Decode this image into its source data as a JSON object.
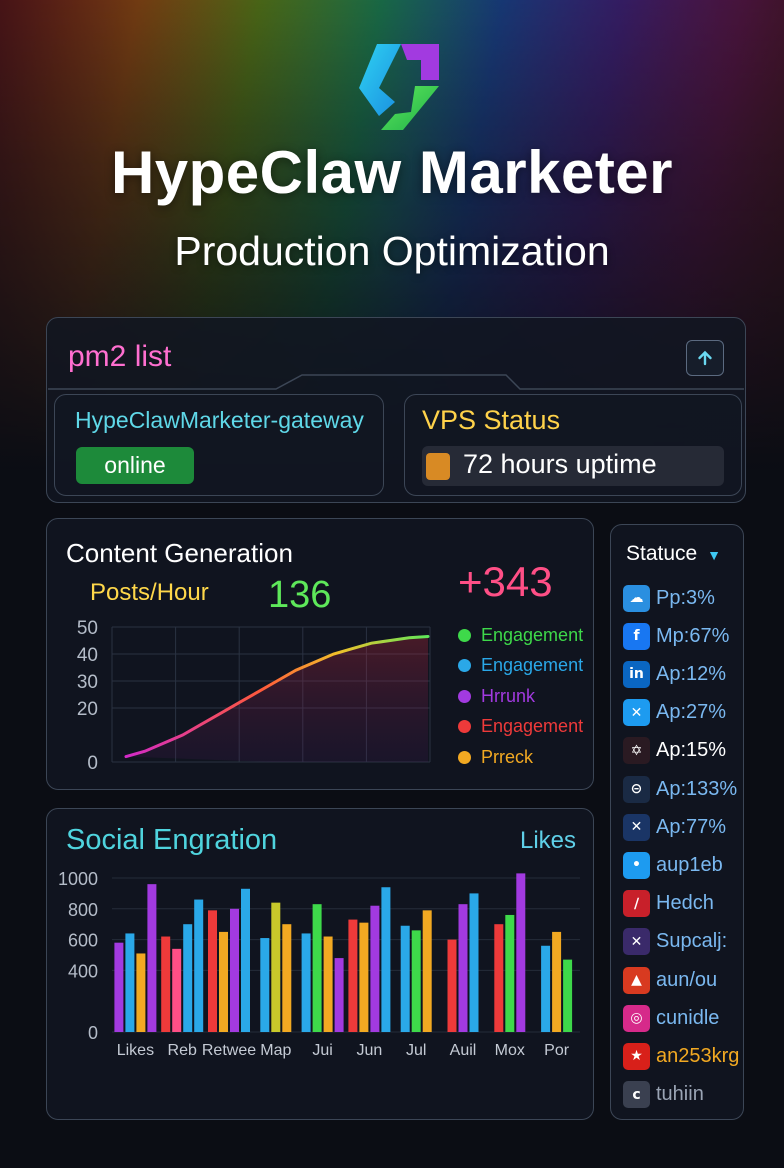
{
  "header": {
    "title": "HypeClaw Marketer",
    "subtitle": "Production Optimization"
  },
  "pm2": {
    "title": "pm2 list",
    "process_name": "HypeClawMarketer-gateway",
    "status": "online"
  },
  "vps": {
    "title": "VPS Status",
    "uptime": "72 hours uptime"
  },
  "content_generation": {
    "title": "Content Generation",
    "metric_label": "Posts/Hour",
    "metric_value": "136",
    "delta": "+343",
    "legend": [
      {
        "label": "Engagement",
        "color": "#3ed94a"
      },
      {
        "label": "Engagement",
        "color": "#2aa8e8"
      },
      {
        "label": "Hrrunk",
        "color": "#a23ae0"
      },
      {
        "label": "Engagement",
        "color": "#ee3a3a"
      },
      {
        "label": "Prreck",
        "color": "#f2a922"
      }
    ]
  },
  "social_engagement": {
    "title": "Social Engration",
    "series_label": "Likes"
  },
  "status_panel": {
    "title": "Statuce",
    "items": [
      {
        "icon": "cloud-icon",
        "label": "Pp:3%",
        "color": "#2a8fe0",
        "text_color": "#7ab8f0"
      },
      {
        "icon": "facebook-icon",
        "label": "Mp:67%",
        "color": "#1877f2",
        "text_color": "#7ab8f0"
      },
      {
        "icon": "linkedin-icon",
        "label": "Ap:12%",
        "color": "#0a66c2",
        "text_color": "#7ab8f0"
      },
      {
        "icon": "x-icon",
        "label": "Ap:27%",
        "color": "#1d9bf0",
        "text_color": "#7ab8f0"
      },
      {
        "icon": "scribble-icon",
        "label": "Ap:15%",
        "color": "#2a1a22",
        "text_color": "#ffffff"
      },
      {
        "icon": "minus-circle-icon",
        "label": "Ap:133%",
        "color": "#1a2a44",
        "text_color": "#7ab8f0"
      },
      {
        "icon": "x-icon",
        "label": "Ap:77%",
        "color": "#1a3566",
        "text_color": "#7ab8f0"
      },
      {
        "icon": "twitter-icon",
        "label": "aup1eb",
        "color": "#1d9bf0",
        "text_color": "#7ab8f0"
      },
      {
        "icon": "stripes-icon",
        "label": "Hedch",
        "color": "#c8202a",
        "text_color": "#7ab8f0"
      },
      {
        "icon": "x-icon",
        "label": "Supcalj:",
        "color": "#3a2a6a",
        "text_color": "#7ab8f0"
      },
      {
        "icon": "triangle-icon",
        "label": "aun/ou",
        "color": "#d83a20",
        "text_color": "#7ab8f0"
      },
      {
        "icon": "instagram-icon",
        "label": "cunidle",
        "color": "#d62a8a",
        "text_color": "#7ab8f0"
      },
      {
        "icon": "badge-icon",
        "label": "an253krg",
        "color": "#d8201a",
        "text_color": "#f2a922"
      },
      {
        "icon": "c-icon",
        "label": "tuhiin",
        "color": "#3a4050",
        "text_color": "#9aa4b4"
      }
    ]
  },
  "chart_data": [
    {
      "type": "line",
      "title": "Content Generation",
      "y_ticks": [
        "50",
        "40",
        "30",
        "20",
        "0"
      ],
      "ylim": [
        0,
        50
      ],
      "series": [
        {
          "values": [
            2,
            4,
            7,
            10,
            14,
            18,
            22,
            26,
            30,
            34,
            37,
            40,
            42,
            44,
            45,
            46,
            46.5
          ]
        }
      ],
      "grid": true
    },
    {
      "type": "bar",
      "title": "Social Engration",
      "ylabel": "Likes",
      "y_ticks": [
        "1000",
        "800",
        "600",
        "400",
        "0"
      ],
      "ylim": [
        0,
        1000
      ],
      "categories": [
        "Likes",
        "Reb",
        "Retwee",
        "Map",
        "Jui",
        "Jun",
        "Jul",
        "Auil",
        "Mox",
        "Por"
      ],
      "bars": [
        [
          {
            "value": 580,
            "color": "#a23ae0"
          },
          {
            "value": 640,
            "color": "#2aa8e8"
          },
          {
            "value": 510,
            "color": "#f2a922"
          },
          {
            "value": 960,
            "color": "#a23ae0"
          }
        ],
        [
          {
            "value": 620,
            "color": "#ee3a3a"
          },
          {
            "value": 540,
            "color": "#ff4f86"
          },
          {
            "value": 700,
            "color": "#2aa8e8"
          },
          {
            "value": 860,
            "color": "#2aa8e8"
          }
        ],
        [
          {
            "value": 790,
            "color": "#ee3a3a"
          },
          {
            "value": 650,
            "color": "#f2a922"
          },
          {
            "value": 800,
            "color": "#a23ae0"
          },
          {
            "value": 930,
            "color": "#2aa8e8"
          }
        ],
        [
          {
            "value": 610,
            "color": "#2aa8e8"
          },
          {
            "value": 840,
            "color": "#c8c82a"
          },
          {
            "value": 700,
            "color": "#f2a922"
          }
        ],
        [
          {
            "value": 640,
            "color": "#2aa8e8"
          },
          {
            "value": 830,
            "color": "#3ed94a"
          },
          {
            "value": 620,
            "color": "#f2a922"
          },
          {
            "value": 480,
            "color": "#a23ae0"
          }
        ],
        [
          {
            "value": 730,
            "color": "#ee3a3a"
          },
          {
            "value": 710,
            "color": "#f2a922"
          },
          {
            "value": 820,
            "color": "#a23ae0"
          },
          {
            "value": 940,
            "color": "#2aa8e8"
          }
        ],
        [
          {
            "value": 690,
            "color": "#2aa8e8"
          },
          {
            "value": 660,
            "color": "#3ed94a"
          },
          {
            "value": 790,
            "color": "#f2a922"
          }
        ],
        [
          {
            "value": 600,
            "color": "#ee3a3a"
          },
          {
            "value": 830,
            "color": "#a23ae0"
          },
          {
            "value": 900,
            "color": "#2aa8e8"
          }
        ],
        [
          {
            "value": 700,
            "color": "#ee3a3a"
          },
          {
            "value": 760,
            "color": "#3ed94a"
          },
          {
            "value": 1030,
            "color": "#a23ae0"
          }
        ],
        [
          {
            "value": 560,
            "color": "#2aa8e8"
          },
          {
            "value": 650,
            "color": "#f2a922"
          },
          {
            "value": 470,
            "color": "#3ed94a"
          }
        ]
      ],
      "grid": true
    }
  ]
}
